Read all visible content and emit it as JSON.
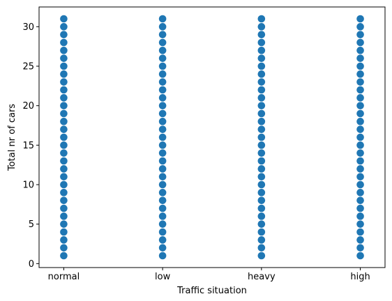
{
  "chart_data": {
    "type": "scatter",
    "title": "",
    "xlabel": "Traffic situation",
    "ylabel": "Total nr of cars",
    "categories": [
      "normal",
      "low",
      "heavy",
      "high"
    ],
    "y_values_per_category": [
      1,
      2,
      3,
      4,
      5,
      6,
      7,
      8,
      9,
      10,
      11,
      12,
      13,
      14,
      15,
      16,
      17,
      18,
      19,
      20,
      21,
      22,
      23,
      24,
      25,
      26,
      27,
      28,
      29,
      30,
      31
    ],
    "ylim": [
      -0.5,
      32.5
    ],
    "yticks": [
      0,
      5,
      10,
      15,
      20,
      25,
      30
    ],
    "grid": false,
    "legend": "none",
    "marker_color": "#1f77b4"
  }
}
